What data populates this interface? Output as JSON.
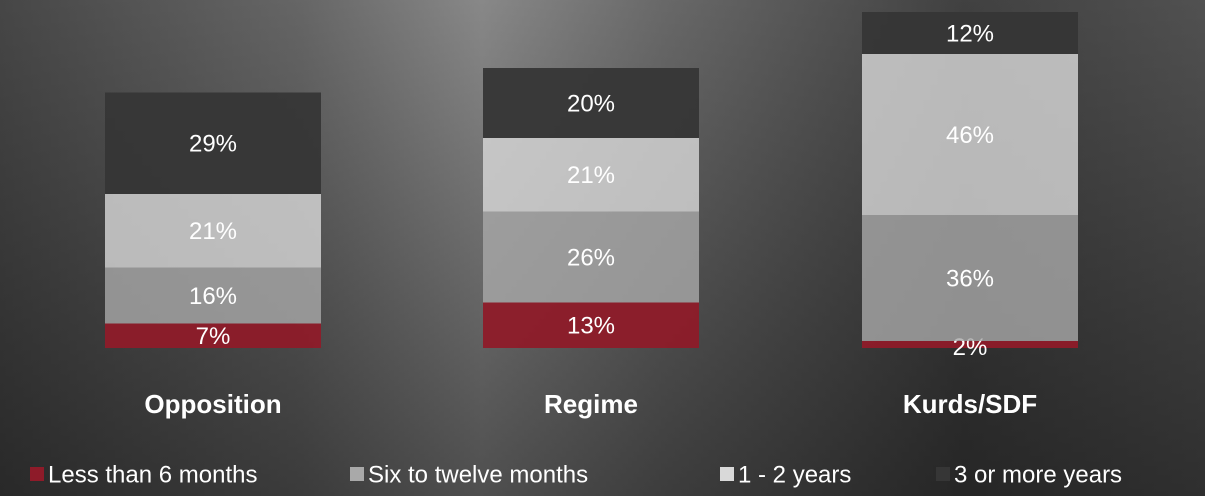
{
  "chart_data": {
    "type": "stacked-bar",
    "categories": [
      "Opposition",
      "Regime",
      "Kurds/SDF"
    ],
    "series": [
      {
        "name": "Less than 6 months",
        "color": "#8e1b29",
        "values": [
          7,
          13,
          2
        ],
        "value_labels": [
          "7%",
          "13%",
          "2%"
        ]
      },
      {
        "name": "Six to twelve months",
        "color": "#a9a9a9",
        "values": [
          16,
          26,
          36
        ],
        "value_labels": [
          "16%",
          "26%",
          "36%"
        ]
      },
      {
        "name": "1 - 2 years",
        "color": "#d9d9d9",
        "values": [
          21,
          21,
          46
        ],
        "value_labels": [
          "21%",
          "21%",
          "46%"
        ]
      },
      {
        "name": "3 or more years",
        "color": "#363636",
        "values": [
          29,
          20,
          12
        ],
        "value_labels": [
          "29%",
          "20%",
          "12%"
        ]
      }
    ],
    "legend": "bottom"
  }
}
